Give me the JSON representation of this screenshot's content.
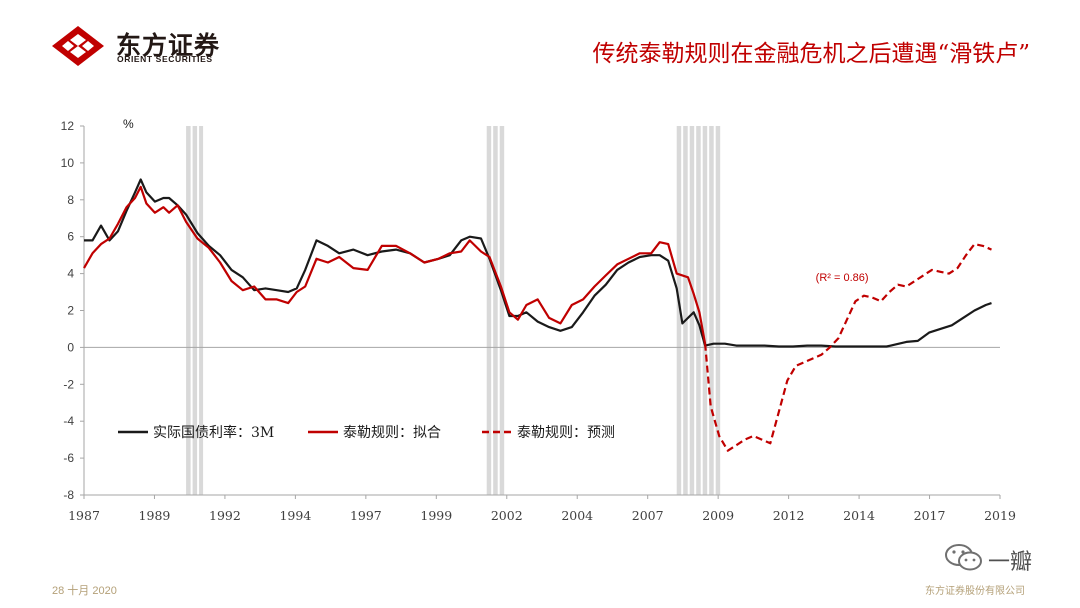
{
  "header": {
    "logo_cn": "东方证券",
    "logo_en": "ORIENT SECURITIES",
    "title": "传统泰勒规则在金融危机之后遭遇“滑铁卢”"
  },
  "footer": {
    "date": "28 十月 2020",
    "company": "东方证券股份有限公司"
  },
  "watermark": {
    "text": "一瓣"
  },
  "colors": {
    "black_series": "#1a1a1a",
    "red_series": "#c00000",
    "recession_band": "#d9d9d9",
    "axis": "#a6a6a6",
    "title": "#c00000",
    "footer": "#b4a078"
  },
  "chart_data": {
    "type": "line",
    "ylabel": "%",
    "ylim": [
      -8,
      12
    ],
    "yticks": [
      "12",
      "10",
      "8",
      "6",
      "4",
      "2",
      "0",
      "-2",
      "-4",
      "-6",
      "-8"
    ],
    "xlim": [
      1987.0,
      2019.3
    ],
    "xtick_labels": [
      "1987",
      "1989",
      "1992",
      "1994",
      "1997",
      "1999",
      "2002",
      "2004",
      "2007",
      "2009",
      "2012",
      "2014",
      "2017",
      "2019"
    ],
    "annotation": "(R² = 0.86)",
    "annotation_at": {
      "x": 2012.8,
      "y": 3.6
    },
    "recession_bands": [
      {
        "start": 1990.6,
        "end": 1991.2
      },
      {
        "start": 2001.2,
        "end": 2001.9
      },
      {
        "start": 2007.9,
        "end": 2009.5
      }
    ],
    "legend_position": "lower-left",
    "series": [
      {
        "name": "实际国债利率：3M",
        "style": "solid",
        "color": "#1a1a1a",
        "x": [
          1987.0,
          1987.3,
          1987.6,
          1987.9,
          1988.2,
          1988.5,
          1988.8,
          1989.0,
          1989.2,
          1989.5,
          1989.8,
          1990.0,
          1990.3,
          1990.6,
          1991.0,
          1991.4,
          1991.8,
          1992.2,
          1992.6,
          1993.0,
          1993.4,
          1993.8,
          1994.2,
          1994.5,
          1994.8,
          1995.2,
          1995.6,
          1996.0,
          1996.5,
          1997.0,
          1997.5,
          1998.0,
          1998.5,
          1999.0,
          1999.5,
          1999.9,
          2000.3,
          2000.6,
          2001.0,
          2001.3,
          2001.7,
          2002.0,
          2002.3,
          2002.6,
          2003.0,
          2003.4,
          2003.8,
          2004.2,
          2004.6,
          2005.0,
          2005.4,
          2005.8,
          2006.2,
          2006.6,
          2007.0,
          2007.3,
          2007.6,
          2007.9,
          2008.1,
          2008.3,
          2008.5,
          2008.7,
          2008.9,
          2009.2,
          2009.6,
          2010.0,
          2010.5,
          2011.0,
          2011.5,
          2012.0,
          2012.5,
          2013.0,
          2013.5,
          2014.0,
          2014.5,
          2015.0,
          2015.3,
          2015.6,
          2016.0,
          2016.4,
          2016.8,
          2017.2,
          2017.6,
          2018.0,
          2018.4,
          2018.8,
          2019.0
        ],
        "y": [
          5.8,
          5.8,
          6.6,
          5.8,
          6.3,
          7.4,
          8.4,
          9.1,
          8.4,
          7.9,
          8.1,
          8.1,
          7.7,
          7.2,
          6.2,
          5.5,
          5.0,
          4.2,
          3.8,
          3.1,
          3.2,
          3.1,
          3.0,
          3.2,
          4.2,
          5.8,
          5.5,
          5.1,
          5.3,
          5.0,
          5.2,
          5.3,
          5.1,
          4.6,
          4.8,
          5.0,
          5.8,
          6.0,
          5.9,
          4.8,
          3.1,
          1.7,
          1.7,
          1.9,
          1.4,
          1.1,
          0.9,
          1.1,
          1.9,
          2.8,
          3.4,
          4.2,
          4.6,
          4.9,
          5.0,
          5.0,
          4.7,
          3.2,
          1.3,
          1.6,
          1.9,
          1.2,
          0.1,
          0.2,
          0.2,
          0.1,
          0.1,
          0.1,
          0.05,
          0.05,
          0.1,
          0.1,
          0.05,
          0.05,
          0.05,
          0.05,
          0.05,
          0.15,
          0.3,
          0.35,
          0.8,
          1.0,
          1.2,
          1.6,
          2.0,
          2.3,
          2.4
        ]
      },
      {
        "name": "泰勒规则：拟合",
        "style": "solid",
        "color": "#c00000",
        "x": [
          1987.0,
          1987.3,
          1987.6,
          1987.9,
          1988.2,
          1988.5,
          1988.8,
          1989.0,
          1989.2,
          1989.5,
          1989.8,
          1990.0,
          1990.3,
          1990.6,
          1991.0,
          1991.4,
          1991.8,
          1992.2,
          1992.6,
          1993.0,
          1993.4,
          1993.8,
          1994.2,
          1994.5,
          1994.8,
          1995.2,
          1995.6,
          1996.0,
          1996.5,
          1997.0,
          1997.5,
          1998.0,
          1998.5,
          1999.0,
          1999.5,
          1999.9,
          2000.3,
          2000.6,
          2001.0,
          2001.3,
          2001.7,
          2002.0,
          2002.3,
          2002.6,
          2003.0,
          2003.4,
          2003.8,
          2004.2,
          2004.6,
          2005.0,
          2005.4,
          2005.8,
          2006.2,
          2006.6,
          2007.0,
          2007.3,
          2007.6,
          2007.9,
          2008.1,
          2008.3,
          2008.5,
          2008.7,
          2008.9
        ],
        "y": [
          4.3,
          5.1,
          5.6,
          5.9,
          6.7,
          7.6,
          8.1,
          8.7,
          7.8,
          7.3,
          7.6,
          7.3,
          7.7,
          6.8,
          5.9,
          5.4,
          4.6,
          3.6,
          3.1,
          3.3,
          2.6,
          2.6,
          2.4,
          3.0,
          3.3,
          4.8,
          4.6,
          4.9,
          4.3,
          4.2,
          5.5,
          5.5,
          5.1,
          4.6,
          4.8,
          5.1,
          5.2,
          5.8,
          5.2,
          4.9,
          3.3,
          1.9,
          1.5,
          2.3,
          2.6,
          1.6,
          1.3,
          2.3,
          2.6,
          3.3,
          3.9,
          4.5,
          4.8,
          5.1,
          5.1,
          5.7,
          5.6,
          4.0,
          3.9,
          3.8,
          2.9,
          1.9,
          0.2
        ]
      },
      {
        "name": "泰勒规则：预测",
        "style": "dashed",
        "color": "#c00000",
        "x": [
          2008.9,
          2009.1,
          2009.4,
          2009.7,
          2010.0,
          2010.3,
          2010.6,
          2010.9,
          2011.2,
          2011.5,
          2011.8,
          2012.1,
          2012.4,
          2012.7,
          2013.0,
          2013.3,
          2013.6,
          2013.9,
          2014.2,
          2014.5,
          2014.8,
          2015.1,
          2015.4,
          2015.7,
          2016.0,
          2016.3,
          2016.6,
          2016.9,
          2017.2,
          2017.5,
          2017.8,
          2018.1,
          2018.4,
          2018.7,
          2019.0
        ],
        "y": [
          0.2,
          -3.2,
          -4.8,
          -5.6,
          -5.3,
          -5.0,
          -4.8,
          -5.0,
          -5.2,
          -3.5,
          -1.8,
          -1.0,
          -0.8,
          -0.6,
          -0.4,
          0.0,
          0.5,
          1.5,
          2.5,
          2.8,
          2.7,
          2.5,
          3.0,
          3.4,
          3.3,
          3.6,
          3.9,
          4.2,
          4.1,
          4.0,
          4.3,
          5.0,
          5.6,
          5.5,
          5.3
        ]
      }
    ]
  }
}
